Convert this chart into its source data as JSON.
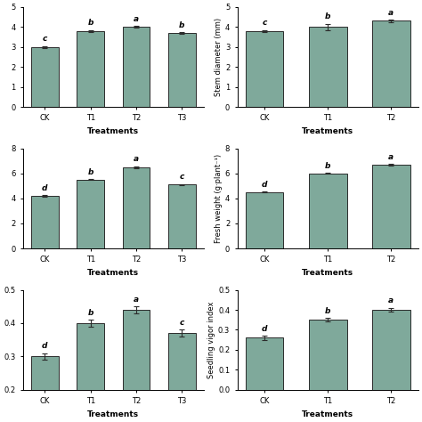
{
  "bar_color": "#7fa99b",
  "bar_edge_color": "#2b2b2b",
  "error_color": "#2b2b2b",
  "subplot_configs": [
    {
      "categories": [
        "CK",
        "T1",
        "T2",
        "T3"
      ],
      "values": [
        3.0,
        3.8,
        4.0,
        3.7
      ],
      "errors": [
        0.04,
        0.04,
        0.05,
        0.04
      ],
      "letters": [
        "c",
        "b",
        "a",
        "b"
      ],
      "ylabel": "",
      "xlabel": "Treatments",
      "ylim": [
        0,
        5
      ],
      "yticks": [
        0,
        1,
        2,
        3,
        4,
        5
      ],
      "show_ytick_labels": false
    },
    {
      "categories": [
        "CK",
        "T1",
        "T2"
      ],
      "values": [
        3.8,
        4.0,
        4.3
      ],
      "errors": [
        0.05,
        0.15,
        0.05
      ],
      "letters": [
        "c",
        "b",
        "a"
      ],
      "ylabel": "Stem diameter (mm)",
      "xlabel": "Treatments",
      "ylim": [
        0,
        5
      ],
      "yticks": [
        0,
        1,
        2,
        3,
        4,
        5
      ],
      "show_ytick_labels": true
    },
    {
      "categories": [
        "CK",
        "T1",
        "T2",
        "T3"
      ],
      "values": [
        4.2,
        5.5,
        6.5,
        5.1
      ],
      "errors": [
        0.05,
        0.05,
        0.08,
        0.05
      ],
      "letters": [
        "d",
        "b",
        "a",
        "c"
      ],
      "ylabel": "",
      "xlabel": "Treatments",
      "ylim": [
        0,
        8
      ],
      "yticks": [
        0,
        2,
        4,
        6,
        8
      ],
      "show_ytick_labels": false
    },
    {
      "categories": [
        "CK",
        "T1",
        "T2"
      ],
      "values": [
        4.5,
        6.0,
        6.7
      ],
      "errors": [
        0.05,
        0.05,
        0.05
      ],
      "letters": [
        "d",
        "b",
        "a"
      ],
      "ylabel": "Fresh weight (g·plant⁻¹)",
      "xlabel": "Treatments",
      "ylim": [
        0,
        8
      ],
      "yticks": [
        0,
        2,
        4,
        6,
        8
      ],
      "show_ytick_labels": true
    },
    {
      "categories": [
        "CK",
        "T1",
        "T2",
        "T3"
      ],
      "values": [
        0.3,
        0.4,
        0.44,
        0.37
      ],
      "errors": [
        0.01,
        0.01,
        0.01,
        0.01
      ],
      "letters": [
        "d",
        "b",
        "a",
        "c"
      ],
      "ylabel": "",
      "xlabel": "Treatments",
      "ylim": [
        0.2,
        0.5
      ],
      "yticks": [
        0.2,
        0.3,
        0.4,
        0.5
      ],
      "show_ytick_labels": false
    },
    {
      "categories": [
        "CK",
        "T1",
        "T2"
      ],
      "values": [
        0.26,
        0.35,
        0.4
      ],
      "errors": [
        0.01,
        0.01,
        0.01
      ],
      "letters": [
        "d",
        "b",
        "a"
      ],
      "ylabel": "Seedling vigor index",
      "xlabel": "Treatments",
      "ylim": [
        0.0,
        0.5
      ],
      "yticks": [
        0.0,
        0.1,
        0.2,
        0.3,
        0.4,
        0.5
      ],
      "show_ytick_labels": true
    }
  ]
}
